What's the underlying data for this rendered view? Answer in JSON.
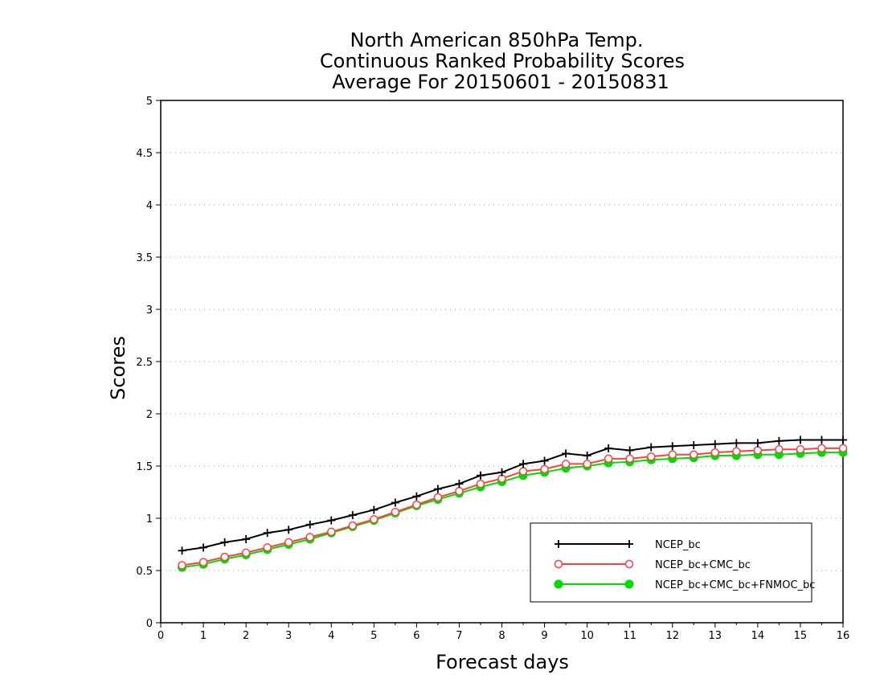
{
  "chart_data": {
    "type": "line",
    "title_lines": [
      "North American 850hPa Temp.",
      "Continuous Ranked Probability Scores",
      "Average For 20150601 - 20150831"
    ],
    "xlabel": "Forecast days",
    "ylabel": "Scores",
    "xlim": [
      0,
      16
    ],
    "ylim": [
      0,
      5
    ],
    "x_ticks": [
      "0",
      "1",
      "2",
      "3",
      "4",
      "5",
      "6",
      "7",
      "8",
      "9",
      "10",
      "11",
      "12",
      "13",
      "14",
      "15",
      "16"
    ],
    "y_ticks": [
      "0",
      "0.5",
      "1",
      "1.5",
      "2",
      "2.5",
      "3",
      "3.5",
      "4",
      "4.5",
      "5"
    ],
    "grid": "horizontal dotted",
    "legend_position": "bottom-right",
    "x": [
      0.5,
      1,
      1.5,
      2,
      2.5,
      3,
      3.5,
      4,
      4.5,
      5,
      5.5,
      6,
      6.5,
      7,
      7.5,
      8,
      8.5,
      9,
      9.5,
      10,
      10.5,
      11,
      11.5,
      12,
      12.5,
      13,
      13.5,
      14,
      14.5,
      15,
      15.5,
      16
    ],
    "series": [
      {
        "name": "NCEP_bc",
        "color": "#000000",
        "marker": "plus",
        "values": [
          0.69,
          0.72,
          0.77,
          0.8,
          0.86,
          0.89,
          0.94,
          0.98,
          1.03,
          1.08,
          1.15,
          1.21,
          1.28,
          1.33,
          1.41,
          1.44,
          1.52,
          1.55,
          1.62,
          1.6,
          1.67,
          1.65,
          1.68,
          1.69,
          1.7,
          1.71,
          1.72,
          1.72,
          1.74,
          1.75,
          1.75,
          1.75
        ]
      },
      {
        "name": "NCEP_bc+CMC_bc",
        "color": "#ff4040",
        "marker": "open-circle",
        "values": [
          0.55,
          0.58,
          0.63,
          0.67,
          0.72,
          0.77,
          0.82,
          0.87,
          0.93,
          0.99,
          1.06,
          1.13,
          1.2,
          1.26,
          1.33,
          1.38,
          1.45,
          1.47,
          1.52,
          1.52,
          1.57,
          1.57,
          1.59,
          1.61,
          1.61,
          1.63,
          1.64,
          1.65,
          1.66,
          1.66,
          1.67,
          1.67
        ]
      },
      {
        "name": "NCEP_bc+CMC_bc+FNMOC_bc",
        "color": "#00dd00",
        "marker": "filled-circle",
        "values": [
          0.53,
          0.56,
          0.61,
          0.65,
          0.7,
          0.75,
          0.8,
          0.86,
          0.92,
          0.98,
          1.05,
          1.12,
          1.18,
          1.24,
          1.3,
          1.35,
          1.41,
          1.44,
          1.48,
          1.5,
          1.53,
          1.54,
          1.56,
          1.57,
          1.58,
          1.6,
          1.6,
          1.61,
          1.61,
          1.62,
          1.63,
          1.63
        ]
      }
    ]
  }
}
